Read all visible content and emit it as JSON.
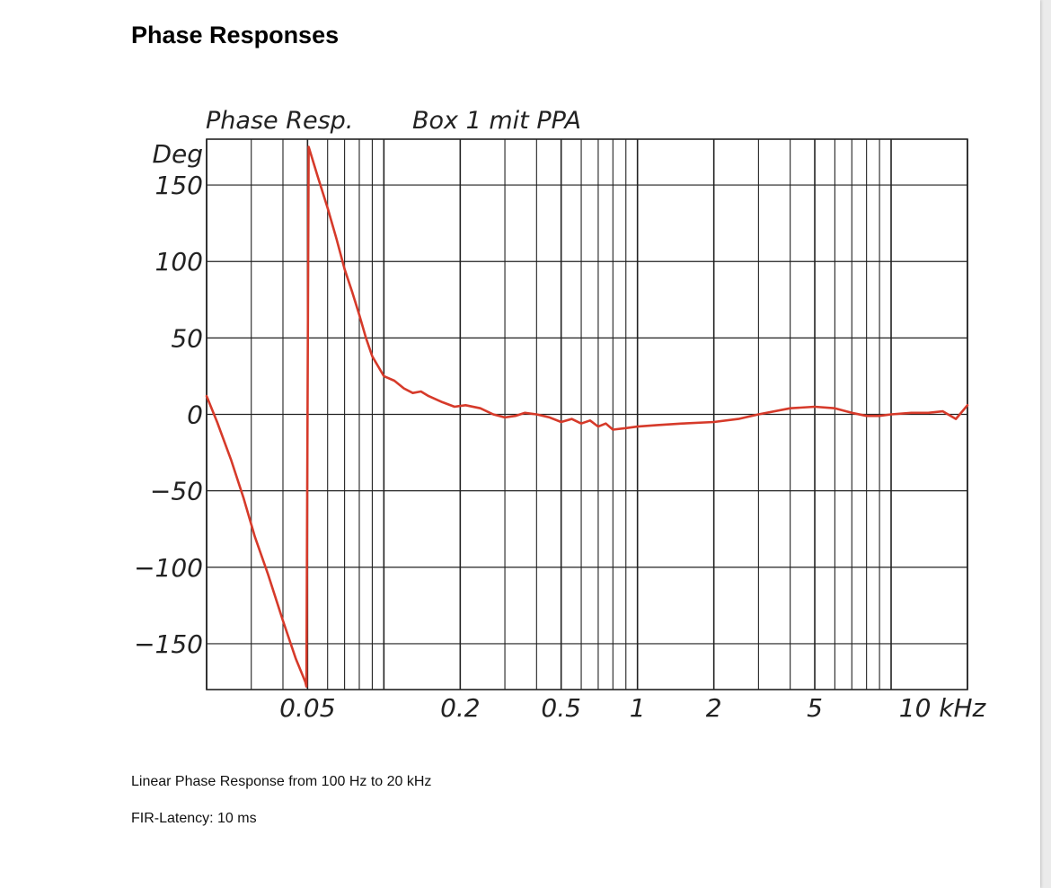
{
  "page": {
    "title": "Phase Responses",
    "notes": [
      "Linear Phase Response from 100 Hz to 20 kHz",
      "FIR-Latency: 10 ms"
    ]
  },
  "colors": {
    "curve": "#d63a2a",
    "grid": "#222222",
    "background": "#ffffff"
  },
  "chart_data": {
    "type": "line",
    "title": "Phase Resp.",
    "subtitle": "Box 1 mit PPA",
    "ylabel": "Deg",
    "xunit": "kHz",
    "xscale": "log",
    "xlim": [
      0.02,
      20
    ],
    "ylim": [
      -180,
      180
    ],
    "yticks": [
      150,
      100,
      50,
      0,
      -50,
      -100,
      -150
    ],
    "ytick_labels": [
      "150",
      "100",
      "50",
      "0",
      "−50",
      "−100",
      "−150"
    ],
    "xticks": [
      0.05,
      0.2,
      0.5,
      1,
      2,
      5,
      10
    ],
    "xtick_labels": [
      "0.05",
      "0.2",
      "0.5",
      "1",
      "2",
      "5",
      "10 kHz"
    ],
    "grid": true,
    "series": [
      {
        "x": [
          0.02,
          0.022,
          0.025,
          0.028,
          0.031,
          0.035,
          0.04,
          0.045,
          0.049,
          0.0495,
          0.0505,
          0.055,
          0.06,
          0.065,
          0.07,
          0.075,
          0.08,
          0.085,
          0.09,
          0.1,
          0.11,
          0.12,
          0.13,
          0.14,
          0.15,
          0.17,
          0.19,
          0.21,
          0.24,
          0.27,
          0.3,
          0.33,
          0.36,
          0.4,
          0.45,
          0.5,
          0.55,
          0.6,
          0.65,
          0.7,
          0.75,
          0.8,
          0.9,
          1.0,
          1.2,
          1.5,
          2.0,
          2.5,
          3,
          4,
          5,
          6,
          7,
          8,
          9,
          10,
          12,
          14,
          16,
          18,
          20
        ],
        "y": [
          12,
          -5,
          -30,
          -55,
          -80,
          -105,
          -135,
          -160,
          -175,
          -178,
          175,
          155,
          135,
          115,
          95,
          80,
          65,
          50,
          38,
          25,
          22,
          17,
          14,
          15,
          12,
          8,
          5,
          6,
          4,
          0,
          -2,
          -1,
          1,
          0,
          -2,
          -5,
          -3,
          -6,
          -4,
          -8,
          -6,
          -10,
          -9,
          -8,
          -7,
          -6,
          -5,
          -3,
          0,
          4,
          5,
          4,
          1,
          -1,
          -1,
          0,
          1,
          1,
          2,
          -3,
          6
        ]
      }
    ]
  }
}
